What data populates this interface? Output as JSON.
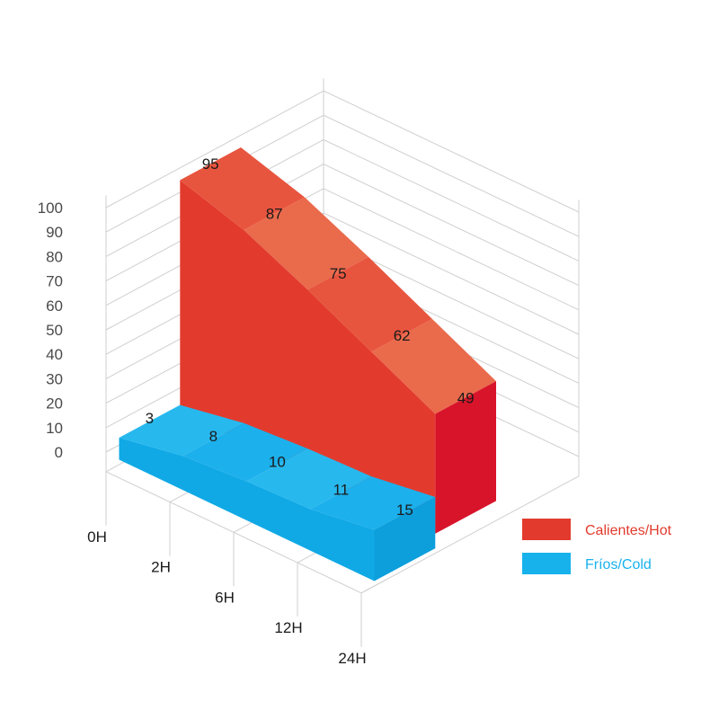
{
  "chart_data": {
    "type": "area",
    "title": "",
    "xlabel": "",
    "ylabel": "",
    "categories": [
      "0H",
      "2H",
      "6H",
      "12H",
      "24H"
    ],
    "ylim": [
      0,
      100
    ],
    "yticks": [
      0,
      10,
      20,
      30,
      40,
      50,
      60,
      70,
      80,
      90,
      100
    ],
    "grid": true,
    "legend_position": "bottom-right",
    "series": [
      {
        "name": "Calientes/Hot",
        "color": "#e23b2e",
        "values": [
          95,
          87,
          75,
          62,
          49
        ]
      },
      {
        "name": "Fríos/Cold",
        "color": "#17b2ec",
        "values": [
          3,
          8,
          10,
          11,
          15
        ]
      }
    ]
  }
}
